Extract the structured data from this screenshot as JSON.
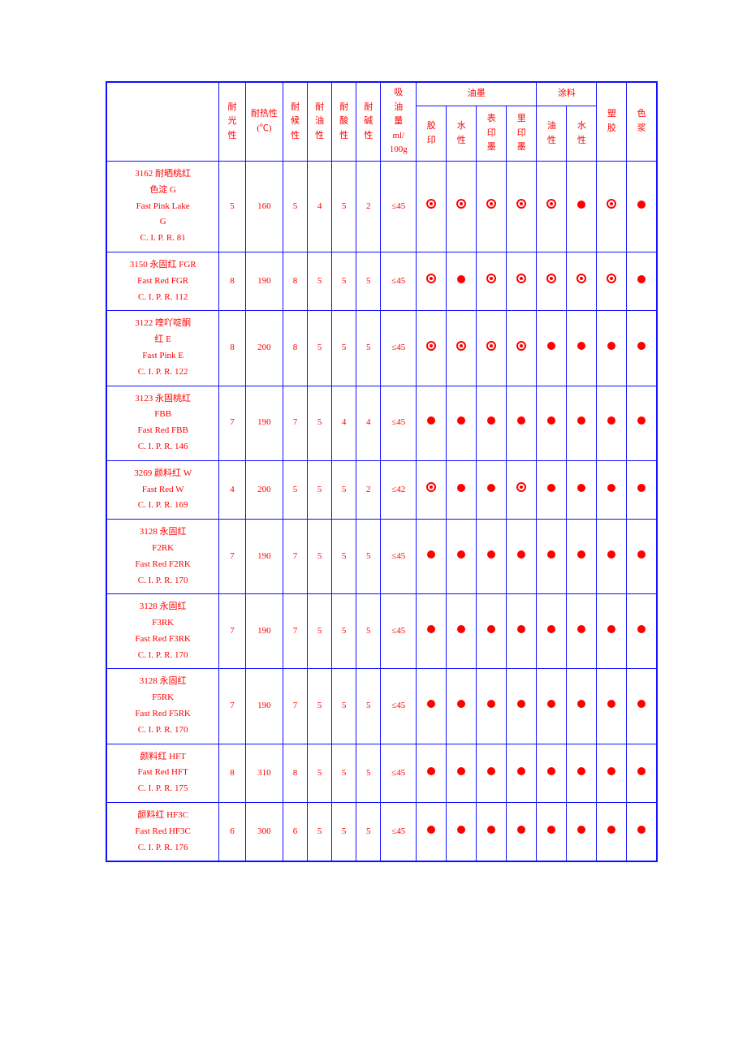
{
  "colors": {
    "border": "#1010ff",
    "text": "#ff0000",
    "symbol": "#ff0000",
    "background": "#ffffff"
  },
  "header": {
    "blank": "",
    "light": "耐光性",
    "heat": "耐热性(℃)",
    "weather": "耐候性",
    "oil": "耐油性",
    "acid": "耐酸性",
    "alkali": "耐碱性",
    "absorb": "吸油量ml/100g",
    "ink_group": "油墨",
    "coat_group": "涂料",
    "ink1": "胶印",
    "ink2": "水性",
    "ink3": "表印墨",
    "ink4": "里印墨",
    "coat1": "油性",
    "coat2": "水性",
    "plastic": "塑胶",
    "paste": "色浆"
  },
  "rows": [
    {
      "name": [
        "3162 耐晒桃红",
        "色淀 G",
        "Fast Pink Lake",
        "G",
        "C. I. P. R. 81"
      ],
      "v": [
        "5",
        "160",
        "5",
        "4",
        "5",
        "2",
        "≤45"
      ],
      "s": [
        "ring",
        "ring",
        "ring",
        "ring",
        "ring",
        "dot",
        "ring",
        "dot"
      ]
    },
    {
      "name": [
        "3150 永固红 FGR",
        "Fast Red FGR",
        "C. I. P. R. 112"
      ],
      "v": [
        "8",
        "190",
        "8",
        "5",
        "5",
        "5",
        "≤45"
      ],
      "s": [
        "ring",
        "dot",
        "ring",
        "ring",
        "ring",
        "ring",
        "ring",
        "dot"
      ]
    },
    {
      "name": [
        "3122 喹吖啶酮",
        "红 E",
        "Fast Pink E",
        "C. I. P. R. 122"
      ],
      "v": [
        "8",
        "200",
        "8",
        "5",
        "5",
        "5",
        "≤45"
      ],
      "s": [
        "ring",
        "ring",
        "ring",
        "ring",
        "dot",
        "dot",
        "dot",
        "dot"
      ]
    },
    {
      "name": [
        "3123 永固桃红",
        "FBB",
        "Fast Red FBB",
        "C. I. P. R. 146"
      ],
      "v": [
        "7",
        "190",
        "7",
        "5",
        "4",
        "4",
        "≤45"
      ],
      "s": [
        "dot",
        "dot",
        "dot",
        "dot",
        "dot",
        "dot",
        "dot",
        "dot"
      ]
    },
    {
      "name": [
        "3269 颜料红 W",
        "Fast Red W",
        "C. I. P. R. 169"
      ],
      "v": [
        "4",
        "200",
        "5",
        "5",
        "5",
        "2",
        "≤42"
      ],
      "s": [
        "ring",
        "dot",
        "dot",
        "ring",
        "dot",
        "dot",
        "dot",
        "dot"
      ]
    },
    {
      "name": [
        "3128 永固红",
        "F2RK",
        "Fast Red F2RK",
        "C. I. P. R. 170"
      ],
      "v": [
        "7",
        "190",
        "7",
        "5",
        "5",
        "5",
        "≤45"
      ],
      "s": [
        "dot",
        "dot",
        "dot",
        "dot",
        "dot",
        "dot",
        "dot",
        "dot"
      ]
    },
    {
      "name": [
        "3128 永固红",
        "F3RK",
        "Fast Red F3RK",
        "C. I. P. R. 170"
      ],
      "v": [
        "7",
        "190",
        "7",
        "5",
        "5",
        "5",
        "≤45"
      ],
      "s": [
        "dot",
        "dot",
        "dot",
        "dot",
        "dot",
        "dot",
        "dot",
        "dot"
      ]
    },
    {
      "name": [
        "3128 永固红",
        "F5RK",
        "Fast Red F5RK",
        "C. I. P. R. 170"
      ],
      "v": [
        "7",
        "190",
        "7",
        "5",
        "5",
        "5",
        "≤45"
      ],
      "s": [
        "dot",
        "dot",
        "dot",
        "dot",
        "dot",
        "dot",
        "dot",
        "dot"
      ]
    },
    {
      "name": [
        "颜料红 HFT",
        "Fast Red HFT",
        "C. I. P. R. 175"
      ],
      "v": [
        "8",
        "310",
        "8",
        "5",
        "5",
        "5",
        "≤45"
      ],
      "s": [
        "dot",
        "dot",
        "dot",
        "dot",
        "dot",
        "dot",
        "dot",
        "dot"
      ]
    },
    {
      "name": [
        "颜料红 HF3C",
        "Fast Red HF3C",
        "C. I. P. R. 176"
      ],
      "v": [
        "6",
        "300",
        "6",
        "5",
        "5",
        "5",
        "≤45"
      ],
      "s": [
        "dot",
        "dot",
        "dot",
        "dot",
        "dot",
        "dot",
        "dot",
        "dot"
      ]
    }
  ]
}
